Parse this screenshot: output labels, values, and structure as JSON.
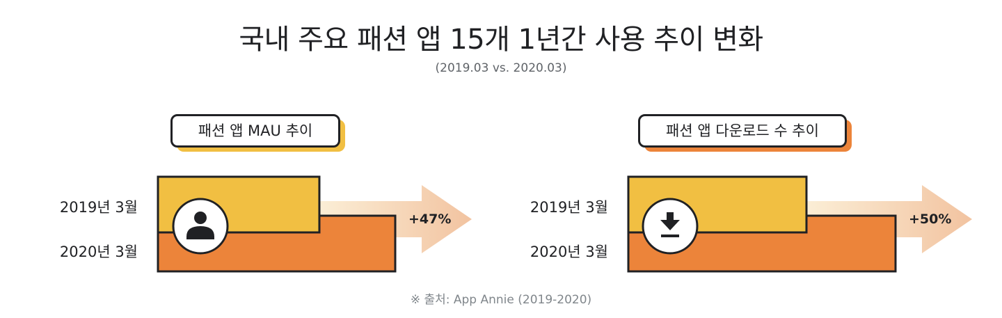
{
  "title": "국내 주요 패션 앱 15개 1년간 사용 추이 변화",
  "subtitle": "(2019.03 vs. 2020.03)",
  "source": "※ 출처: App Annie (2019-2020)",
  "colors": {
    "yellow": "#F1BF42",
    "orange": "#EC843A",
    "arrow": "#F3C9A6",
    "outline": "#202124"
  },
  "chart_data": [
    {
      "type": "bar",
      "title": "패션 앱 MAU 추이",
      "icon": "person-icon",
      "categories": [
        "2019년 3월",
        "2020년 3월"
      ],
      "values": [
        100,
        147
      ],
      "change_label": "+47%"
    },
    {
      "type": "bar",
      "title": "패션 앱 다운로드 수 추이",
      "icon": "download-icon",
      "categories": [
        "2019년 3월",
        "2020년 3월"
      ],
      "values": [
        100,
        150
      ],
      "change_label": "+50%"
    }
  ]
}
